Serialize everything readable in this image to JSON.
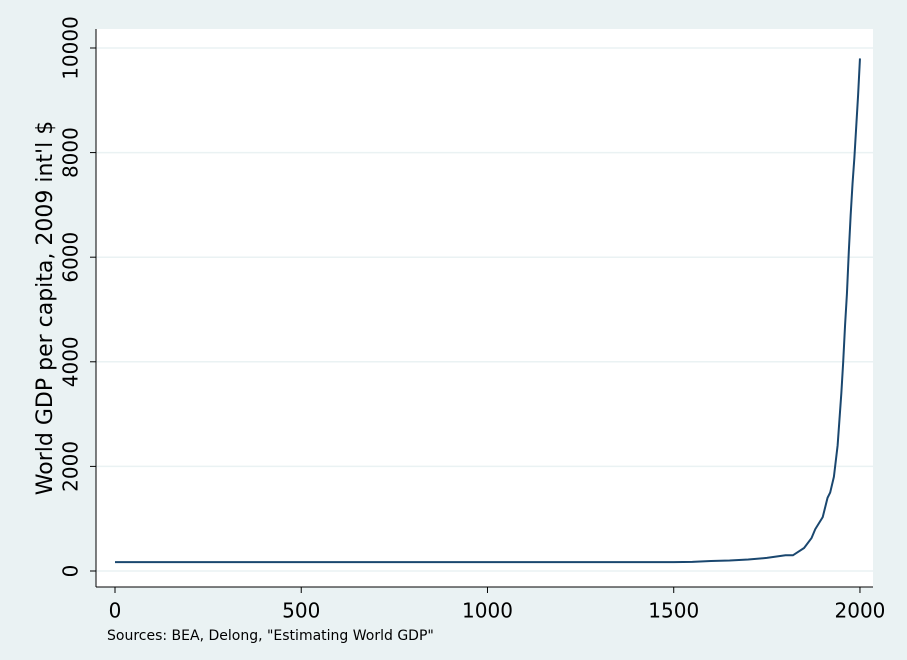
{
  "chart_data": {
    "type": "line",
    "y_label": "World GDP per capita, 2009 int'l $",
    "note": "Sources: BEA, Delong, \"Estimating World GDP\"",
    "x": [
      0,
      1000,
      1500,
      1550,
      1600,
      1650,
      1700,
      1750,
      1800,
      1820,
      1850,
      1870,
      1880,
      1900,
      1913,
      1920,
      1930,
      1940,
      1950,
      1955,
      1960,
      1965,
      1970,
      1975,
      1980,
      1985,
      1990,
      1995,
      2000
    ],
    "series": [
      {
        "color": "#1a476f",
        "values": [
          170,
          170,
          170,
          175,
          190,
          200,
          220,
          250,
          300,
          300,
          440,
          630,
          800,
          1030,
          1400,
          1500,
          1800,
          2400,
          3400,
          4000,
          4700,
          5300,
          6100,
          6800,
          7400,
          7900,
          8500,
          9100,
          9800
        ]
      }
    ],
    "xlim": [
      -51,
      2035
    ],
    "ylim": [
      -306,
      10363
    ],
    "xticks": [
      0,
      500,
      1000,
      1500,
      2000
    ],
    "yticks": [
      0,
      2000,
      4000,
      6000,
      8000,
      10000
    ],
    "grid": true
  }
}
